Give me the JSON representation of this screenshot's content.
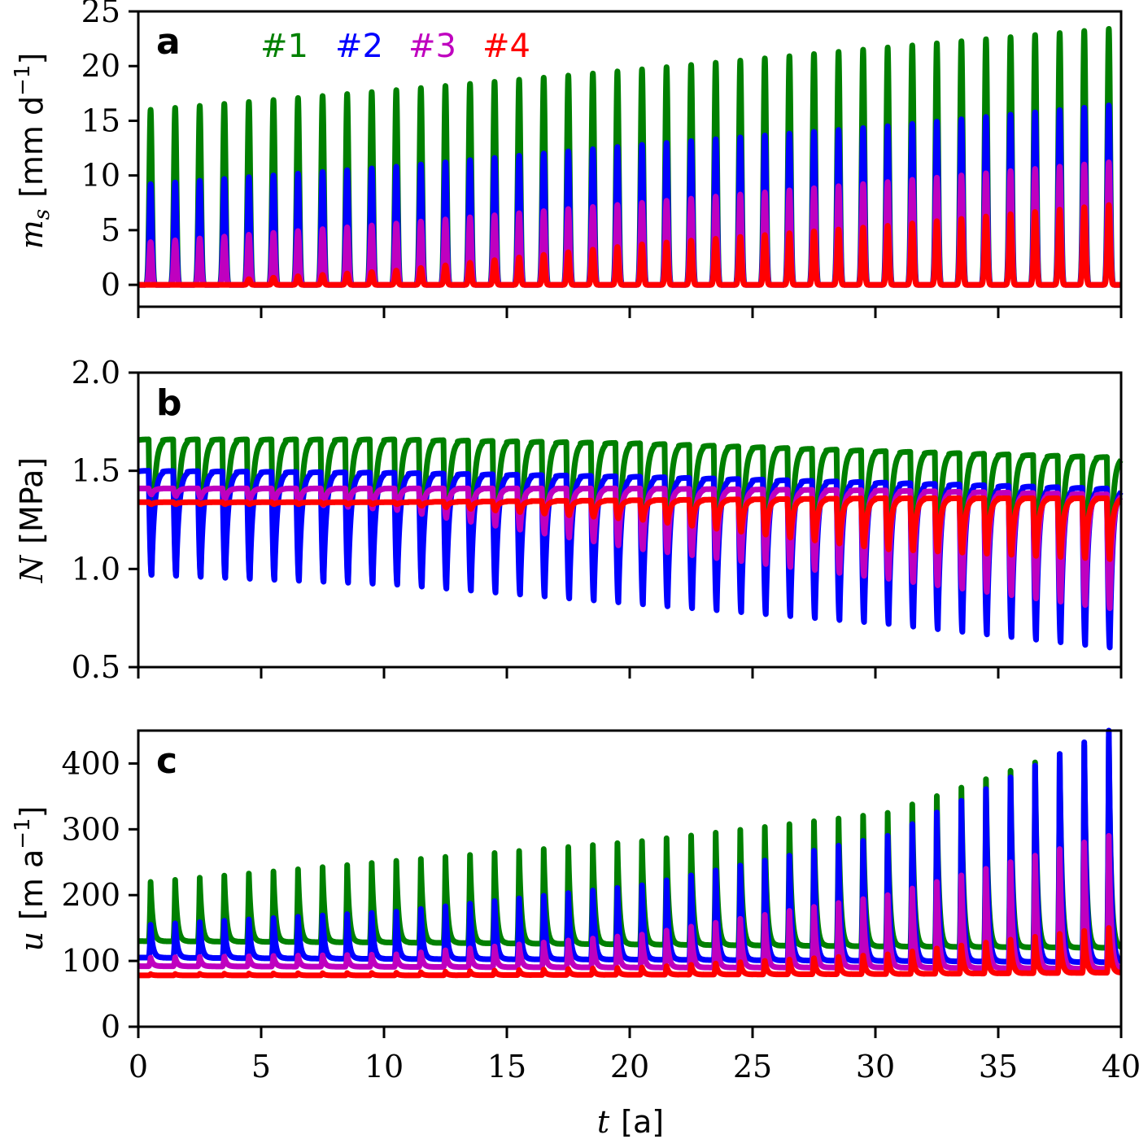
{
  "chart_data": {
    "type": "line",
    "x_label_italic": "t",
    "x_label_unit": "[a]",
    "xlim": [
      0,
      40
    ],
    "x_ticks": [
      "0",
      "5",
      "10",
      "15",
      "20",
      "25",
      "30",
      "35",
      "40"
    ],
    "legend": {
      "placement": "top",
      "entries": [
        "#1",
        "#2",
        "#3",
        "#4"
      ]
    },
    "colors": [
      "#008000",
      "#0000ff",
      "#bf00bf",
      "#ff0000"
    ],
    "anchor_years": [
      0.5,
      10.5,
      20.5,
      30.5,
      39.5
    ],
    "panels": [
      {
        "label": "a",
        "ylabel_symbol": "m",
        "ylabel_sub": "s",
        "ylabel_unit": "[mm d",
        "ylabel_sup": "−1",
        "ylabel_close": "]",
        "ylim": [
          -2,
          25
        ],
        "y_ticks": [
          "0",
          "5",
          "10",
          "15",
          "20",
          "25"
        ],
        "y_tick_values": [
          0,
          5,
          10,
          15,
          20,
          25
        ],
        "kind": "melt",
        "series": [
          {
            "name": "#1",
            "baseline": [
              0,
              0,
              0,
              0,
              0
            ],
            "peak": [
              16,
              17.8,
              19.7,
              21.7,
              23.4
            ]
          },
          {
            "name": "#2",
            "baseline": [
              0,
              0,
              0,
              0,
              0
            ],
            "peak": [
              9.2,
              10.8,
              12.8,
              14.5,
              16.4
            ]
          },
          {
            "name": "#3",
            "baseline": [
              0,
              0,
              0,
              0,
              0
            ],
            "peak": [
              3.9,
              5.6,
              7.5,
              9.4,
              11.2
            ]
          },
          {
            "name": "#4",
            "baseline": [
              0,
              0,
              0,
              0,
              0
            ],
            "peak": [
              0,
              1.3,
              3.7,
              5.4,
              7.3
            ]
          }
        ]
      },
      {
        "label": "b",
        "ylabel_symbol": "N",
        "ylabel_unit": "[MPa]",
        "ylim": [
          0.5,
          2.0
        ],
        "y_ticks": [
          "0.5",
          "1.0",
          "1.5",
          "2.0"
        ],
        "y_tick_values": [
          0.5,
          1.0,
          1.5,
          2.0
        ],
        "kind": "pressure",
        "series": [
          {
            "name": "#1",
            "baseline": [
              1.66,
              1.66,
              1.64,
              1.6,
              1.57
            ],
            "peak": [
              0.97,
              0.93,
              0.9,
              0.88,
              0.86
            ]
          },
          {
            "name": "#2",
            "baseline": [
              1.5,
              1.49,
              1.47,
              1.44,
              1.41
            ],
            "peak": [
              0.97,
              0.92,
              0.82,
              0.72,
              0.6
            ]
          },
          {
            "name": "#3",
            "baseline": [
              1.41,
              1.41,
              1.41,
              1.4,
              1.38
            ],
            "peak": [
              1.38,
              1.3,
              1.1,
              0.95,
              0.8
            ]
          },
          {
            "name": "#4",
            "baseline": [
              1.34,
              1.34,
              1.35,
              1.36,
              1.36
            ],
            "peak": [
              1.33,
              1.33,
              1.25,
              1.1,
              1.05
            ]
          }
        ]
      },
      {
        "label": "c",
        "ylabel_symbol": "u",
        "ylabel_unit": "[m a",
        "ylabel_sup": "−1",
        "ylabel_close": "]",
        "ylim": [
          0,
          450
        ],
        "y_ticks": [
          "0",
          "100",
          "200",
          "300",
          "400"
        ],
        "y_tick_values": [
          0,
          100,
          200,
          300,
          400
        ],
        "kind": "velocity",
        "series": [
          {
            "name": "#1",
            "baseline": [
              130,
              128,
              125,
              122,
              120
            ],
            "peak": [
              220,
              252,
              282,
              325,
              440
            ]
          },
          {
            "name": "#2",
            "baseline": [
              105,
              103,
              102,
              100,
              98
            ],
            "peak": [
              155,
              175,
              215,
              290,
              450
            ]
          },
          {
            "name": "#3",
            "baseline": [
              92,
              91,
              90,
              90,
              88
            ],
            "peak": [
              105,
              110,
              140,
              200,
              290
            ]
          },
          {
            "name": "#4",
            "baseline": [
              78,
              78,
              79,
              80,
              82
            ],
            "peak": [
              80,
              82,
              90,
              110,
              150
            ]
          }
        ]
      }
    ]
  }
}
